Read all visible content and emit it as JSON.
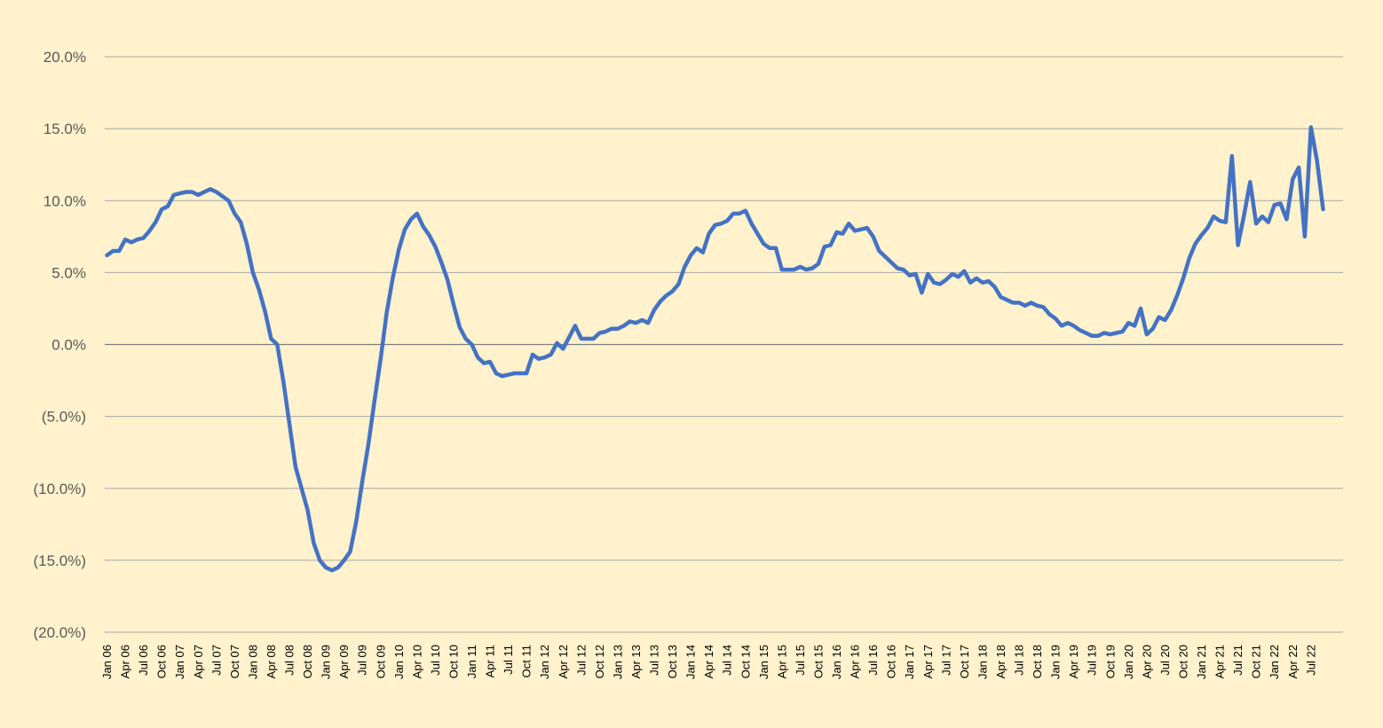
{
  "chart_data": {
    "type": "line",
    "title": "",
    "xlabel": "",
    "ylabel": "",
    "ylim": [
      -20,
      20
    ],
    "y_ticks": [
      {
        "value": 20,
        "label": "20.0%"
      },
      {
        "value": 15,
        "label": "15.0%"
      },
      {
        "value": 10,
        "label": "10.0%"
      },
      {
        "value": 5,
        "label": "5.0%"
      },
      {
        "value": 0,
        "label": "0.0%"
      },
      {
        "value": -5,
        "label": "(5.0%)"
      },
      {
        "value": -10,
        "label": "(10.0%)"
      },
      {
        "value": -15,
        "label": "(15.0%)"
      },
      {
        "value": -20,
        "label": "(20.0%)"
      }
    ],
    "x_tick_labels": [
      "Jan 06",
      "Apr 06",
      "Jul 06",
      "Oct 06",
      "Jan 07",
      "Apr 07",
      "Jul 07",
      "Oct 07",
      "Jan 08",
      "Apr 08",
      "Jul 08",
      "Oct 08",
      "Jan 09",
      "Apr 09",
      "Jul 09",
      "Oct 09",
      "Jan 10",
      "Apr 10",
      "Jul 10",
      "Oct 10",
      "Jan 11",
      "Apr 11",
      "Jul 11",
      "Oct 11",
      "Jan 12",
      "Apr 12",
      "Jul 12",
      "Oct 12",
      "Jan 13",
      "Apr 13",
      "Jul 13",
      "Oct 13",
      "Jan 14",
      "Apr 14",
      "Jul 14",
      "Oct 14",
      "Jan 15",
      "Apr 15",
      "Jul 15",
      "Oct 15",
      "Jan 16",
      "Apr 16",
      "Jul 16",
      "Oct 16",
      "Jan 17",
      "Apr 17",
      "Jul 17",
      "Oct 17",
      "Jan 18",
      "Apr 18",
      "Jul 18",
      "Oct 18",
      "Jan 19",
      "Apr 19",
      "Jul 19",
      "Oct 19",
      "Jan 20",
      "Apr 20",
      "Jul 20",
      "Oct 20",
      "Jan 21",
      "Apr 21",
      "Jul 21",
      "Oct 21",
      "Jan 22",
      "Apr 22",
      "Jul 22"
    ],
    "grid": true,
    "legend": "none",
    "series": [
      {
        "color": "#4472C4",
        "start": "Jan 06",
        "frequency": "monthly",
        "values": [
          6.2,
          6.5,
          6.5,
          7.3,
          7.1,
          7.3,
          7.4,
          7.9,
          8.5,
          9.4,
          9.6,
          10.4,
          10.5,
          10.6,
          10.6,
          10.4,
          10.6,
          10.8,
          10.6,
          10.3,
          10.0,
          9.1,
          8.5,
          7.0,
          5.0,
          3.8,
          2.3,
          0.4,
          0.0,
          -2.5,
          -5.5,
          -8.5,
          -10.0,
          -11.5,
          -13.8,
          -15.0,
          -15.5,
          -15.7,
          -15.5,
          -15.0,
          -14.4,
          -12.3,
          -9.5,
          -6.9,
          -3.9,
          -1.0,
          2.2,
          4.6,
          6.6,
          8.0,
          8.7,
          9.1,
          8.2,
          7.6,
          6.8,
          5.7,
          4.5,
          2.8,
          1.2,
          0.4,
          0.0,
          -0.9,
          -1.3,
          -1.2,
          -2.0,
          -2.2,
          -2.1,
          -2.0,
          -2.0,
          -2.0,
          -0.7,
          -1.0,
          -0.9,
          -0.7,
          0.1,
          -0.3,
          0.5,
          1.3,
          0.4,
          0.4,
          0.4,
          0.8,
          0.9,
          1.1,
          1.1,
          1.3,
          1.6,
          1.5,
          1.7,
          1.5,
          2.4,
          3.0,
          3.4,
          3.7,
          4.2,
          5.4,
          6.2,
          6.7,
          6.4,
          7.7,
          8.3,
          8.4,
          8.6,
          9.1,
          9.1,
          9.3,
          8.4,
          7.7,
          7.0,
          6.7,
          6.7,
          5.2,
          5.2,
          5.2,
          5.4,
          5.2,
          5.3,
          5.6,
          6.8,
          6.9,
          7.8,
          7.7,
          8.4,
          7.9,
          8.0,
          8.1,
          7.5,
          6.5,
          6.1,
          5.7,
          5.3,
          5.2,
          4.8,
          4.9,
          3.6,
          4.9,
          4.3,
          4.2,
          4.5,
          4.9,
          4.7,
          5.1,
          4.3,
          4.6,
          4.3,
          4.4,
          4.0,
          3.3,
          3.1,
          2.9,
          2.9,
          2.7,
          2.9,
          2.7,
          2.6,
          2.1,
          1.8,
          1.3,
          1.5,
          1.3,
          1.0,
          0.8,
          0.6,
          0.6,
          0.8,
          0.7,
          0.8,
          0.9,
          1.5,
          1.3,
          2.5,
          0.7,
          1.1,
          1.9,
          1.7,
          2.4,
          3.4,
          4.6,
          6.0,
          7.0,
          7.6,
          8.1,
          8.9,
          8.6,
          8.5,
          13.1,
          6.9,
          9.0,
          11.3,
          8.4,
          8.9,
          8.5,
          9.7,
          9.8,
          8.7,
          11.5,
          12.3,
          7.5,
          15.1,
          12.8,
          9.4
        ]
      }
    ]
  }
}
